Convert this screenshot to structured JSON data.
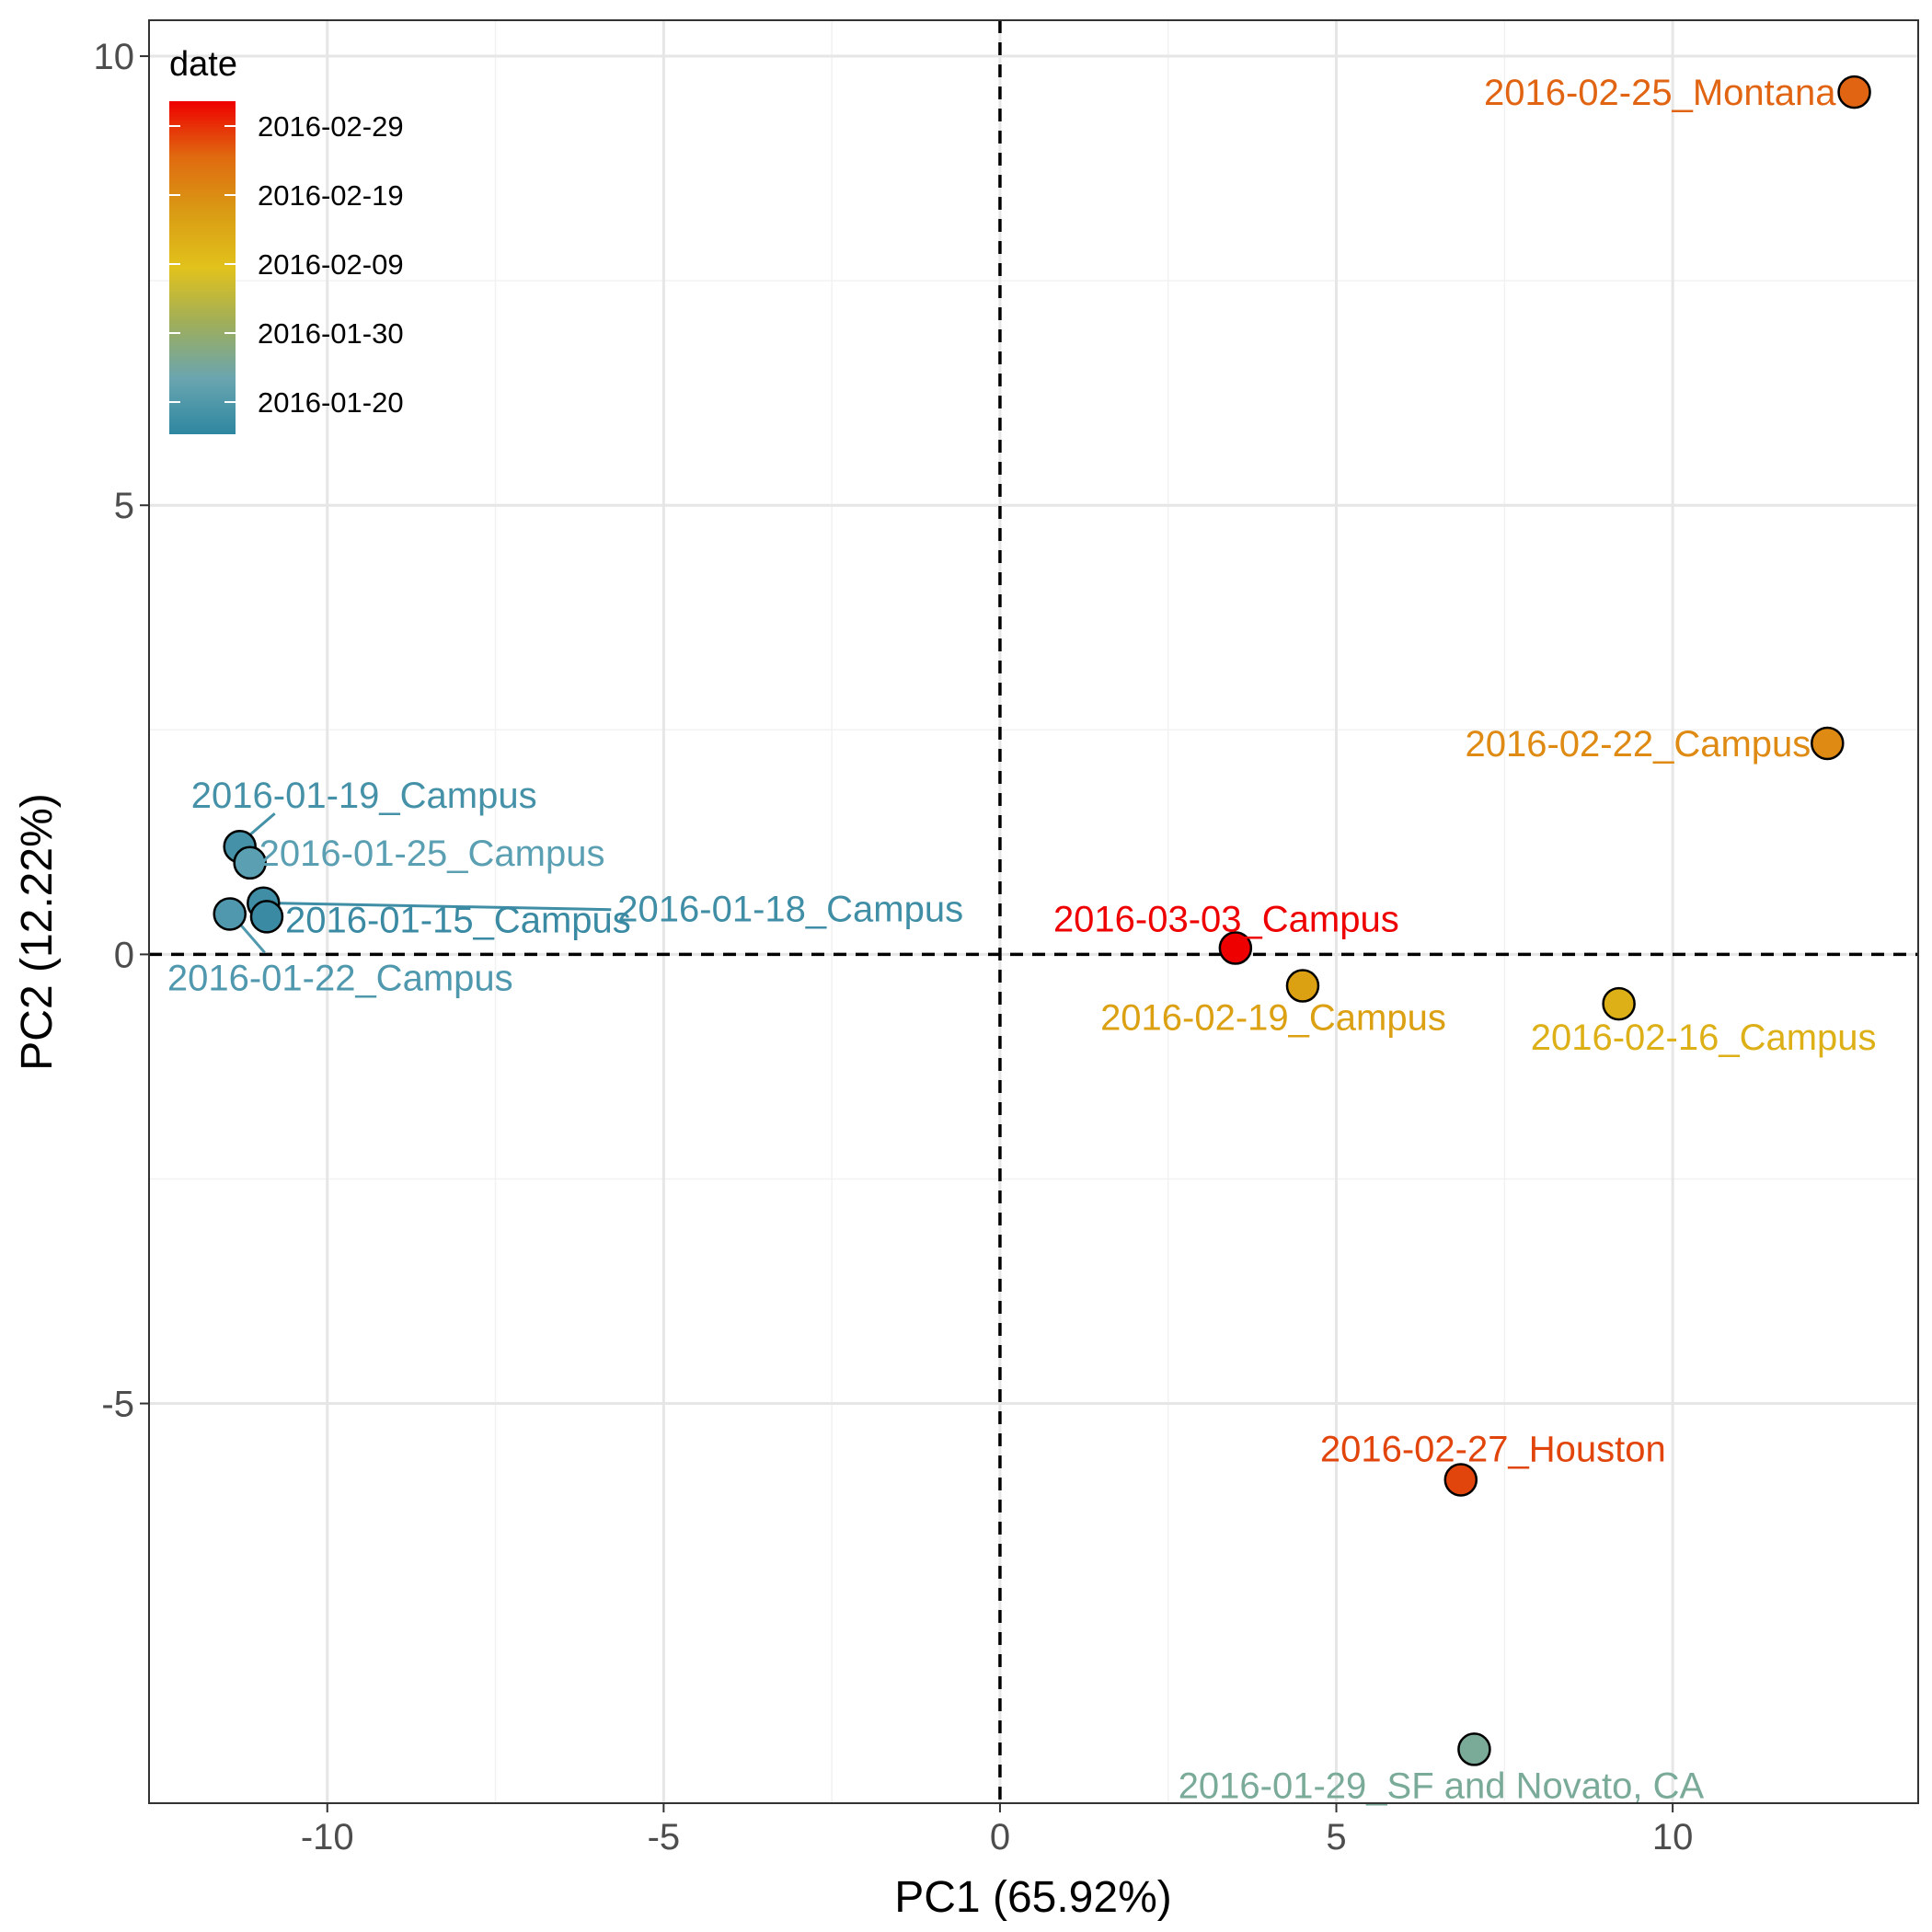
{
  "chart_data": {
    "type": "scatter",
    "xlabel": "PC1 (65.92%)",
    "ylabel": "PC2 (12.22%)",
    "xlim": [
      -12.65,
      13.65
    ],
    "ylim": [
      -9.45,
      10.4
    ],
    "x_ticks": [
      -10,
      -5,
      0,
      5,
      10
    ],
    "y_ticks": [
      -5,
      0,
      5,
      10
    ],
    "x_tick_labels": [
      "-10",
      "-5",
      "0",
      "5",
      "10"
    ],
    "y_tick_labels": [
      "-5",
      "0",
      "5",
      "10"
    ],
    "grid": true,
    "reference_lines": {
      "x": 0,
      "y": 0,
      "style": "dashed"
    },
    "legend": {
      "title": "date",
      "type": "colorbar",
      "placement": "top-left inside",
      "labels": [
        "2016-02-29",
        "2016-02-19",
        "2016-02-09",
        "2016-01-30",
        "2016-01-20"
      ],
      "gradient_colors": [
        "#ee0000",
        "#e06a10",
        "#d99b14",
        "#e2c21c",
        "#9fae5a",
        "#6aa5b0",
        "#2e87a0"
      ]
    },
    "points": [
      {
        "label": "2016-02-25_Montana",
        "x": 12.7,
        "y": 9.6,
        "date": "2016-02-25",
        "color": "#e06412"
      },
      {
        "label": "2016-02-22_Campus",
        "x": 12.3,
        "y": 2.35,
        "date": "2016-02-22",
        "color": "#df8a12"
      },
      {
        "label": "2016-03-03_Campus",
        "x": 3.5,
        "y": 0.07,
        "date": "2016-03-03",
        "color": "#ee0000"
      },
      {
        "label": "2016-02-19_Campus",
        "x": 4.5,
        "y": -0.35,
        "date": "2016-02-19",
        "color": "#dca013"
      },
      {
        "label": "2016-02-16_Campus",
        "x": 9.2,
        "y": -0.55,
        "date": "2016-02-16",
        "color": "#ddb018"
      },
      {
        "label": "2016-02-27_Houston",
        "x": 6.85,
        "y": -5.85,
        "date": "2016-02-27",
        "color": "#e2450c"
      },
      {
        "label": "2016-01-29_SF and Novato, CA",
        "x": 7.05,
        "y": -8.85,
        "date": "2016-01-29",
        "color": "#7aaa98"
      },
      {
        "label": "2016-01-19_Campus",
        "x": -11.3,
        "y": 1.2,
        "date": "2016-01-19",
        "color": "#4491a8"
      },
      {
        "label": "2016-01-25_Campus",
        "x": -11.15,
        "y": 1.02,
        "date": "2016-01-25",
        "color": "#5a9fb2"
      },
      {
        "label": "2016-01-18_Campus",
        "x": -10.95,
        "y": 0.57,
        "date": "2016-01-18",
        "color": "#3f8ea6"
      },
      {
        "label": "2016-01-15_Campus",
        "x": -10.9,
        "y": 0.42,
        "date": "2016-01-15",
        "color": "#3a8aa3"
      },
      {
        "label": "2016-01-22_Campus",
        "x": -11.45,
        "y": 0.45,
        "date": "2016-01-22",
        "color": "#4f98ae"
      }
    ]
  }
}
